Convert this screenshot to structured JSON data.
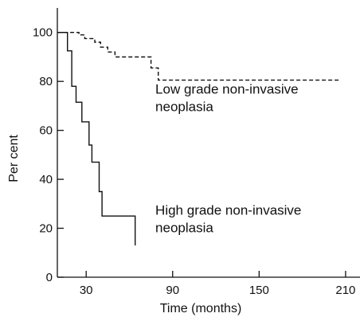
{
  "chart_data": {
    "type": "line",
    "title": "",
    "xlabel": "Time (months)",
    "ylabel": "Per cent",
    "xlim": [
      10,
      220
    ],
    "ylim": [
      0,
      110
    ],
    "x_ticks": [
      30,
      90,
      150,
      210
    ],
    "y_ticks": [
      0,
      20,
      40,
      60,
      80,
      100
    ],
    "x_tick_labels": [
      "30",
      "90",
      "150",
      "210"
    ],
    "y_tick_labels": [
      "0",
      "20",
      "40",
      "60",
      "80",
      "100"
    ],
    "grid": false,
    "series": [
      {
        "name": "Low grade non-invasive neoplasia",
        "style": "dashed",
        "color": "#111111",
        "points": [
          [
            10,
            100
          ],
          [
            25,
            100
          ],
          [
            25,
            99
          ],
          [
            29,
            99
          ],
          [
            29,
            97.5
          ],
          [
            36,
            97.5
          ],
          [
            36,
            96
          ],
          [
            40,
            96
          ],
          [
            40,
            94
          ],
          [
            45,
            94
          ],
          [
            45,
            92
          ],
          [
            50,
            92
          ],
          [
            50,
            90
          ],
          [
            75,
            90
          ],
          [
            75,
            85.5
          ],
          [
            80,
            85.5
          ],
          [
            80,
            80.5
          ],
          [
            206,
            80.5
          ]
        ]
      },
      {
        "name": "High grade non-invasive neoplasia",
        "style": "solid",
        "color": "#111111",
        "points": [
          [
            10,
            100
          ],
          [
            17,
            100
          ],
          [
            17,
            92.5
          ],
          [
            20,
            92.5
          ],
          [
            20,
            78
          ],
          [
            23,
            78
          ],
          [
            23,
            71.5
          ],
          [
            27,
            71.5
          ],
          [
            27,
            63.5
          ],
          [
            32,
            63.5
          ],
          [
            32,
            54
          ],
          [
            34,
            54
          ],
          [
            34,
            47
          ],
          [
            39,
            47
          ],
          [
            39,
            35
          ],
          [
            41,
            35
          ],
          [
            41,
            25
          ],
          [
            64,
            25
          ],
          [
            64,
            13
          ]
        ]
      }
    ],
    "annotations": [
      {
        "lines": [
          "Low grade non-invasive",
          "neoplasia"
        ],
        "x": 78,
        "y": 75
      },
      {
        "lines": [
          "High grade non-invasive",
          "neoplasia"
        ],
        "x": 78,
        "y": 25.5
      }
    ]
  }
}
